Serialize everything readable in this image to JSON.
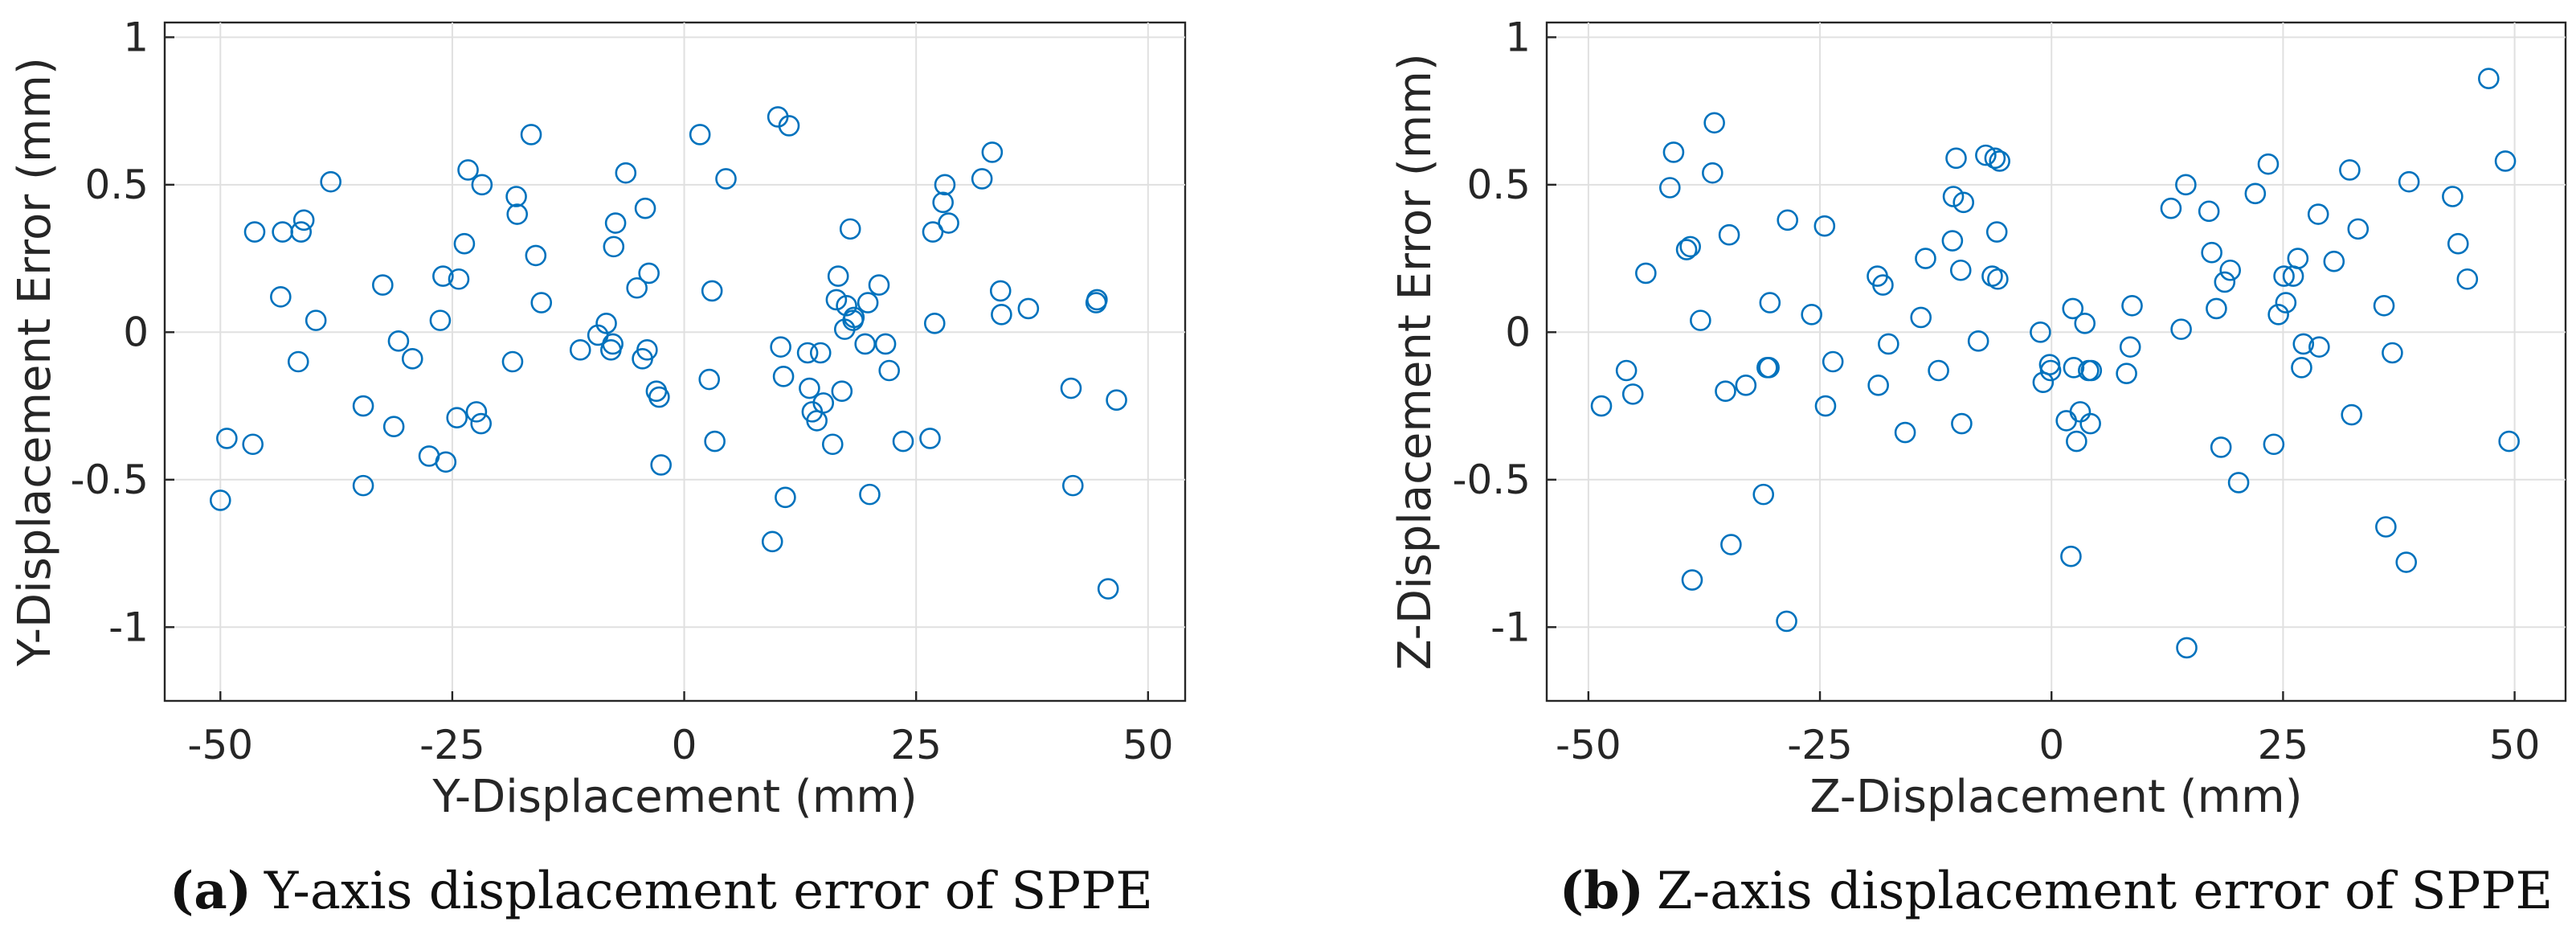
{
  "chart_data": [
    {
      "type": "scatter",
      "xlabel": "Y-Displacement (mm)",
      "ylabel": "Y-Displacement Error (mm)",
      "xlim": [
        -56,
        54
      ],
      "ylim": [
        -1.25,
        1.05
      ],
      "xticks": [
        -50,
        -25,
        0,
        25,
        50
      ],
      "xtick_labels": [
        "-50",
        "-25",
        "0",
        "25",
        "50"
      ],
      "yticks": [
        -1,
        -0.5,
        0,
        0.5,
        1
      ],
      "ytick_labels": [
        "-1",
        "-0.5",
        "0",
        "0.5",
        "1"
      ],
      "grid": true,
      "caption_label": "(a)",
      "caption_text": "Y-axis displacement error of SPPE",
      "marker_color": "#0072bd",
      "x": [
        -50.0,
        -49.3,
        -46.5,
        -46.3,
        -43.5,
        -43.3,
        -41.6,
        -41.3,
        -41.0,
        -39.7,
        -38.1,
        -34.6,
        -34.6,
        -32.5,
        -31.3,
        -30.8,
        -29.3,
        -27.5,
        -26.3,
        -26.0,
        -25.7,
        -24.5,
        -24.3,
        -23.7,
        -23.3,
        -22.4,
        -21.9,
        -21.8,
        -18.5,
        -18.1,
        -18.0,
        -16.5,
        -16.0,
        -15.4,
        -11.2,
        -9.3,
        -8.4,
        -7.9,
        -7.7,
        -7.6,
        -7.4,
        -6.3,
        -5.1,
        -4.5,
        -4.2,
        -4.0,
        -3.8,
        -3.0,
        -2.7,
        -2.5,
        1.7,
        2.7,
        3.0,
        3.3,
        4.5,
        9.5,
        10.1,
        10.4,
        10.7,
        10.9,
        11.3,
        13.3,
        13.5,
        13.8,
        14.3,
        14.7,
        15.0,
        16.0,
        16.4,
        16.6,
        17.0,
        17.3,
        17.5,
        17.9,
        18.2,
        18.3,
        19.5,
        19.8,
        20.0,
        21.0,
        21.7,
        22.1,
        23.6,
        26.5,
        26.8,
        27.0,
        27.9,
        28.1,
        28.5,
        32.1,
        33.2,
        34.1,
        34.2,
        37.1,
        41.7,
        41.9,
        44.4,
        44.5,
        45.7,
        46.6
      ],
      "y": [
        -0.57,
        -0.36,
        -0.38,
        0.34,
        0.12,
        0.34,
        -0.1,
        0.34,
        0.38,
        0.04,
        0.51,
        -0.25,
        -0.52,
        0.16,
        -0.32,
        -0.03,
        -0.09,
        -0.42,
        0.04,
        0.19,
        -0.44,
        -0.29,
        0.18,
        0.3,
        0.55,
        -0.27,
        -0.31,
        0.5,
        -0.1,
        0.46,
        0.4,
        0.67,
        0.26,
        0.1,
        -0.06,
        -0.01,
        0.03,
        -0.06,
        -0.04,
        0.29,
        0.37,
        0.54,
        0.15,
        -0.09,
        0.42,
        -0.06,
        0.2,
        -0.2,
        -0.22,
        -0.45,
        0.67,
        -0.16,
        0.14,
        -0.37,
        0.52,
        -0.71,
        0.73,
        -0.05,
        -0.15,
        -0.56,
        0.7,
        -0.07,
        -0.19,
        -0.27,
        -0.3,
        -0.07,
        -0.24,
        -0.38,
        0.11,
        0.19,
        -0.2,
        0.01,
        0.09,
        0.35,
        0.04,
        0.05,
        -0.04,
        0.1,
        -0.55,
        0.16,
        -0.04,
        -0.13,
        -0.37,
        -0.36,
        0.34,
        0.03,
        0.44,
        0.5,
        0.37,
        0.52,
        0.61,
        0.14,
        0.06,
        0.08,
        -0.19,
        -0.52,
        0.1,
        0.11,
        -0.87,
        -0.23
      ]
    },
    {
      "type": "scatter",
      "xlabel": "Z-Displacement (mm)",
      "ylabel": "Z-Displacement Error (mm)",
      "xlim": [
        -54.5,
        55.5
      ],
      "ylim": [
        -1.25,
        1.05
      ],
      "xticks": [
        -50,
        -25,
        0,
        25,
        50
      ],
      "xtick_labels": [
        "-50",
        "-25",
        "0",
        "25",
        "50"
      ],
      "yticks": [
        -1,
        -0.5,
        0,
        0.5,
        1
      ],
      "ytick_labels": [
        "-1",
        "-0.5",
        "0",
        "0.5",
        "1"
      ],
      "grid": true,
      "caption_label": "(b)",
      "caption_text": "Z-axis displacement error of SPPE",
      "marker_color": "#0072bd",
      "x": [
        -48.6,
        -45.9,
        -45.2,
        -43.8,
        -41.2,
        -40.8,
        -39.4,
        -39.0,
        -38.8,
        -37.9,
        -36.6,
        -36.4,
        -35.2,
        -34.8,
        -34.6,
        -33.0,
        -31.1,
        -30.7,
        -30.5,
        -30.4,
        -28.6,
        -28.5,
        -25.9,
        -24.5,
        -24.4,
        -23.6,
        -18.8,
        -18.7,
        -18.2,
        -17.6,
        -15.8,
        -14.1,
        -13.6,
        -12.2,
        -10.7,
        -10.6,
        -10.3,
        -9.8,
        -9.7,
        -9.5,
        -7.9,
        -7.1,
        -6.4,
        -6.1,
        -5.9,
        -5.8,
        -5.6,
        -1.2,
        -0.9,
        -0.2,
        -0.1,
        1.6,
        2.1,
        2.3,
        2.4,
        2.7,
        3.1,
        3.6,
        4.0,
        4.2,
        4.3,
        8.1,
        8.5,
        8.7,
        12.9,
        14.0,
        14.5,
        14.6,
        17.0,
        17.3,
        17.8,
        18.3,
        18.7,
        19.3,
        20.2,
        22.0,
        23.4,
        24.0,
        24.5,
        25.1,
        25.3,
        26.1,
        26.6,
        27.0,
        27.2,
        28.8,
        28.9,
        30.5,
        32.2,
        32.4,
        33.1,
        35.9,
        36.1,
        36.8,
        38.3,
        38.6,
        43.3,
        43.9,
        44.9,
        47.2,
        49.0,
        49.4
      ],
      "y": [
        -0.25,
        -0.13,
        -0.21,
        0.2,
        0.49,
        0.61,
        0.28,
        0.29,
        -0.84,
        0.04,
        0.54,
        0.71,
        -0.2,
        0.33,
        -0.72,
        -0.18,
        -0.55,
        -0.12,
        -0.12,
        0.1,
        -0.98,
        0.38,
        0.06,
        0.36,
        -0.25,
        -0.1,
        0.19,
        -0.18,
        0.16,
        -0.04,
        -0.34,
        0.05,
        0.25,
        -0.13,
        0.31,
        0.46,
        0.59,
        0.21,
        -0.31,
        0.44,
        -0.03,
        0.6,
        0.19,
        0.59,
        0.34,
        0.18,
        0.58,
        0.0,
        -0.17,
        -0.11,
        -0.13,
        -0.3,
        -0.76,
        0.08,
        -0.12,
        -0.37,
        -0.27,
        0.03,
        -0.13,
        -0.31,
        -0.13,
        -0.14,
        -0.05,
        0.09,
        0.42,
        0.01,
        0.5,
        -1.07,
        0.41,
        0.27,
        0.08,
        -0.39,
        0.17,
        0.21,
        -0.51,
        0.47,
        0.57,
        -0.38,
        0.06,
        0.19,
        0.1,
        0.19,
        0.25,
        -0.12,
        -0.04,
        0.4,
        -0.05,
        0.24,
        0.55,
        -0.28,
        0.35,
        0.09,
        -0.66,
        -0.07,
        -0.78,
        0.51,
        0.46,
        0.3,
        0.18,
        0.86,
        0.58,
        -0.37
      ]
    }
  ]
}
